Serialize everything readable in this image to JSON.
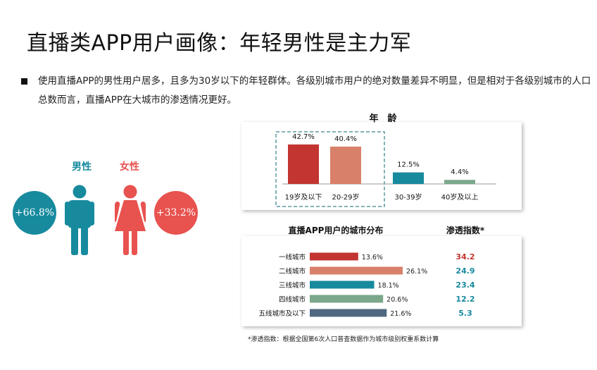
{
  "title": "直播类APP用户画像：年轻男性是主力军",
  "bullet": "使用直播APP的男性用户居多，且多为30岁以下的年轻群体。各级别城市用户的绝对数量差异不明显，但是相对于各级别城市的人口总数而言，直播APP在大城市的渗透情况更好。",
  "gender": {
    "male_label": "男性",
    "female_label": "女性",
    "male_pct": "+66.8%",
    "female_pct": "+33.2%",
    "male_color": "#178a9e",
    "female_color": "#e8524f"
  },
  "chart_data": [
    {
      "type": "bar",
      "title": "年　龄",
      "categories": [
        "19岁及以下",
        "20-29岁",
        "30-39岁",
        "40岁及以上"
      ],
      "values": [
        42.7,
        40.4,
        12.5,
        4.4
      ],
      "labels": [
        "42.7%",
        "40.4%",
        "12.5%",
        "4.4%"
      ],
      "colors": [
        "#c23531",
        "#d9806a",
        "#178a9e",
        "#7ba78a"
      ],
      "ylim": [
        0,
        45
      ]
    },
    {
      "type": "bar",
      "orientation": "horizontal",
      "title": "直播APP用户的城市分布",
      "categories": [
        "一线城市",
        "二线城市",
        "三线城市",
        "四线城市",
        "五线城市及以下"
      ],
      "values": [
        13.6,
        26.1,
        18.1,
        20.6,
        21.6
      ],
      "labels": [
        "13.6%",
        "26.1%",
        "18.1%",
        "20.6%",
        "21.6%"
      ],
      "colors": [
        "#c23531",
        "#d9806a",
        "#178a9e",
        "#7ba78a",
        "#4f6880"
      ],
      "index_title": "渗透指数*",
      "index_values": [
        "34.2",
        "24.9",
        "23.4",
        "12.2",
        "5.3"
      ],
      "index_colors": [
        "#c23531",
        "#178a9e",
        "#178a9e",
        "#178a9e",
        "#178a9e"
      ]
    }
  ],
  "footnote": "*渗透指数：根据全国第6次人口普查数据作为城市级别权重系数计算"
}
